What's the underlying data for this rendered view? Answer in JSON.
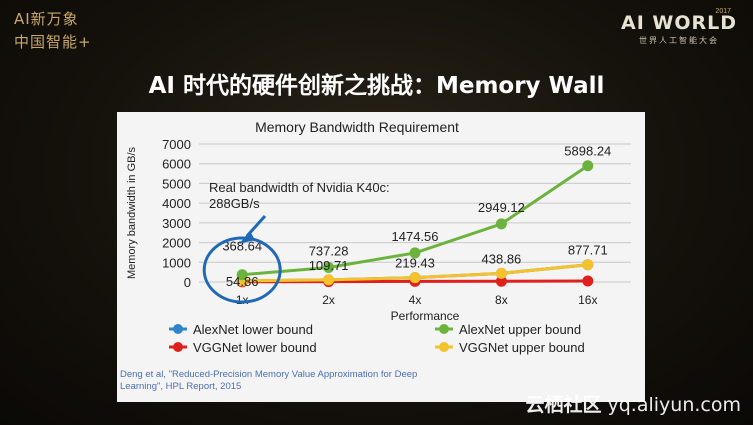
{
  "brand": {
    "left_line1": "AI新万象",
    "left_line2": "中国智能+",
    "right_year": "2017",
    "right_name": "AI WORLD",
    "right_sub": "世界人工智能大会"
  },
  "slide_title": "AI 时代的硬件创新之挑战：Memory Wall",
  "citation_line1": "Deng et al, \"Reduced-Precision Memory Value Approximation for Deep",
  "citation_line2": "Learning\", HPL Report, 2015",
  "watermark_cn": "云栖社区",
  "watermark_url": "yq.aliyun.com",
  "chart_data": {
    "type": "line",
    "title": "Memory Bandwidth Requirement",
    "xlabel": "Performance",
    "ylabel": "Memory bandwidth in GB/s",
    "categories": [
      "1x",
      "2x",
      "4x",
      "8x",
      "16x"
    ],
    "ylim": [
      0,
      7000
    ],
    "yticks": [
      0,
      1000,
      2000,
      3000,
      4000,
      5000,
      6000,
      7000
    ],
    "grid": true,
    "legend_position": "bottom",
    "series": [
      {
        "name": "AlexNet lower bound",
        "color": "#2e86c8",
        "values": [
          54.86,
          109.71,
          219.43,
          438.86,
          877.71
        ]
      },
      {
        "name": "AlexNet upper bound",
        "color": "#6cb33e",
        "values": [
          368.64,
          737.28,
          1474.56,
          2949.12,
          5898.24
        ]
      },
      {
        "name": "VGGNet lower bound",
        "color": "#e0201c",
        "values": [
          10,
          20,
          30,
          40,
          50
        ]
      },
      {
        "name": "VGGNet upper bound",
        "color": "#f4c22b",
        "values": [
          54.86,
          109.71,
          219.43,
          438.86,
          877.71
        ]
      }
    ],
    "data_labels": {
      "upper": [
        "368.64",
        "737.28",
        "1474.56",
        "2949.12",
        "5898.24"
      ],
      "lower": [
        "54.86",
        "109.71",
        "219.43",
        "438.86",
        "877.71"
      ]
    },
    "annotation": "Real bandwidth of Nvidia K40c: 288GB/s"
  }
}
